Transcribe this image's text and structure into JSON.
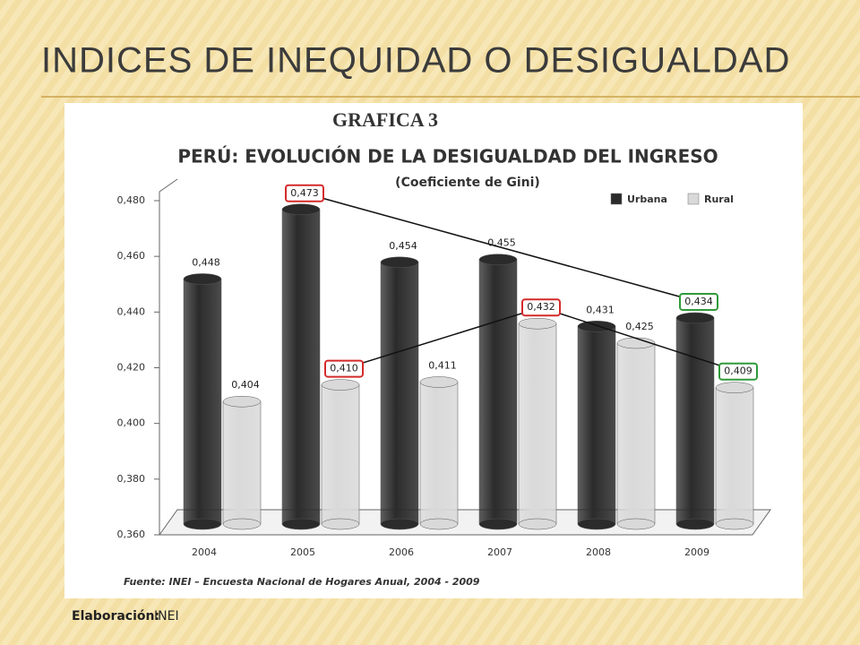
{
  "slide": {
    "title": "INDICES DE INEQUIDAD O DESIGUALDAD",
    "footer": {
      "label": "Elaboración:",
      "text": "INEI"
    }
  },
  "chart_data": {
    "type": "bar",
    "title": "GRAFICA 3",
    "subtitle": "PERÚ: EVOLUCIÓN DE LA DESIGUALDAD DEL INGRESO",
    "y_label": "(Coeficiente de Gini)",
    "source": "Fuente: INEI – Encuesta Nacional de Hogares Anual, 2004 - 2009",
    "categories": [
      "2004",
      "2005",
      "2006",
      "2007",
      "2008",
      "2009"
    ],
    "series": [
      {
        "name": "Urbana",
        "color": "#2b2b2b",
        "values": [
          0.448,
          0.473,
          0.454,
          0.455,
          0.431,
          0.434
        ],
        "value_labels": [
          "0,448",
          "0,473",
          "0,454",
          "0,455",
          "0,431",
          "0,434"
        ]
      },
      {
        "name": "Rural",
        "color": "#d9d9d9",
        "values": [
          0.404,
          0.41,
          0.411,
          0.432,
          0.425,
          0.409
        ],
        "value_labels": [
          "0,404",
          "0,410",
          "0,411",
          "0,432",
          "0,425",
          "0,409"
        ]
      }
    ],
    "ylim": [
      0.36,
      0.48
    ],
    "yticks": [
      {
        "value": 0.36,
        "label": "0,360"
      },
      {
        "value": 0.38,
        "label": "0,380"
      },
      {
        "value": 0.4,
        "label": "0,400"
      },
      {
        "value": 0.42,
        "label": "0,420"
      },
      {
        "value": 0.44,
        "label": "0,440"
      },
      {
        "value": 0.46,
        "label": "0,460"
      },
      {
        "value": 0.48,
        "label": "0,480"
      }
    ],
    "legend": "top-right",
    "highlights": [
      {
        "series": 0,
        "index": 1,
        "color": "#d42a2a"
      },
      {
        "series": 0,
        "index": 5,
        "color": "#2f9a3a"
      },
      {
        "series": 1,
        "index": 1,
        "color": "#d42a2a"
      },
      {
        "series": 1,
        "index": 3,
        "color": "#d42a2a"
      },
      {
        "series": 1,
        "index": 5,
        "color": "#2f9a3a"
      }
    ]
  }
}
